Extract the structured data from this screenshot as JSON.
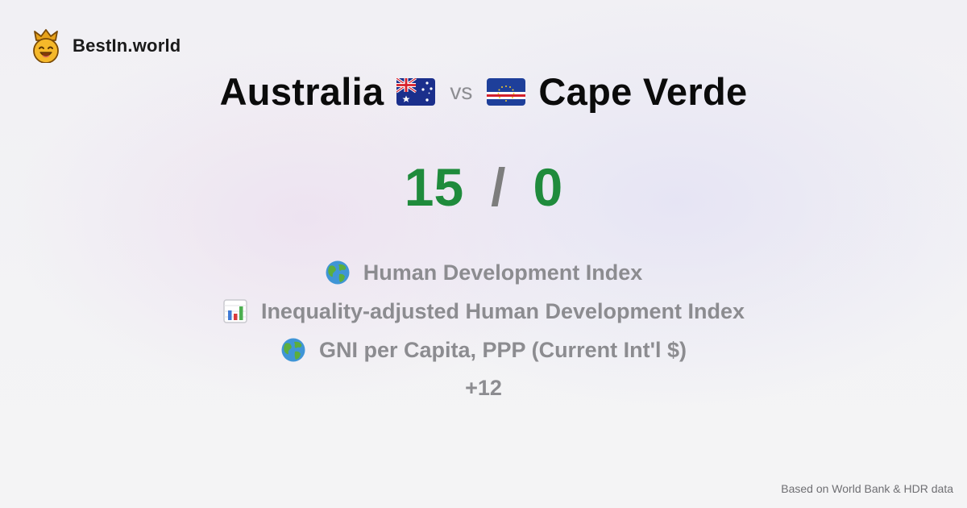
{
  "brand": {
    "name": "BestIn.world",
    "logo_icon": "crowned-smiley-icon"
  },
  "comparison": {
    "country_a": {
      "name": "Australia",
      "flag_icon": "australia-flag-icon"
    },
    "separator": "vs",
    "country_b": {
      "name": "Cape Verde",
      "flag_icon": "cape-verde-flag-icon"
    }
  },
  "score": {
    "a": "15",
    "separator": "/",
    "b": "0"
  },
  "metrics": [
    {
      "icon": "globe-icon",
      "label": "Human Development Index"
    },
    {
      "icon": "bar-chart-icon",
      "label": "Inequality-adjusted Human Development Index"
    },
    {
      "icon": "globe-icon",
      "label": "GNI per Capita, PPP (Current Int'l $)"
    }
  ],
  "more_count": "+12",
  "footnote": "Based on World Bank & HDR data",
  "colors": {
    "score": "#1f8b3c",
    "muted_text": "#8c8c90",
    "title": "#0b0b0b"
  }
}
